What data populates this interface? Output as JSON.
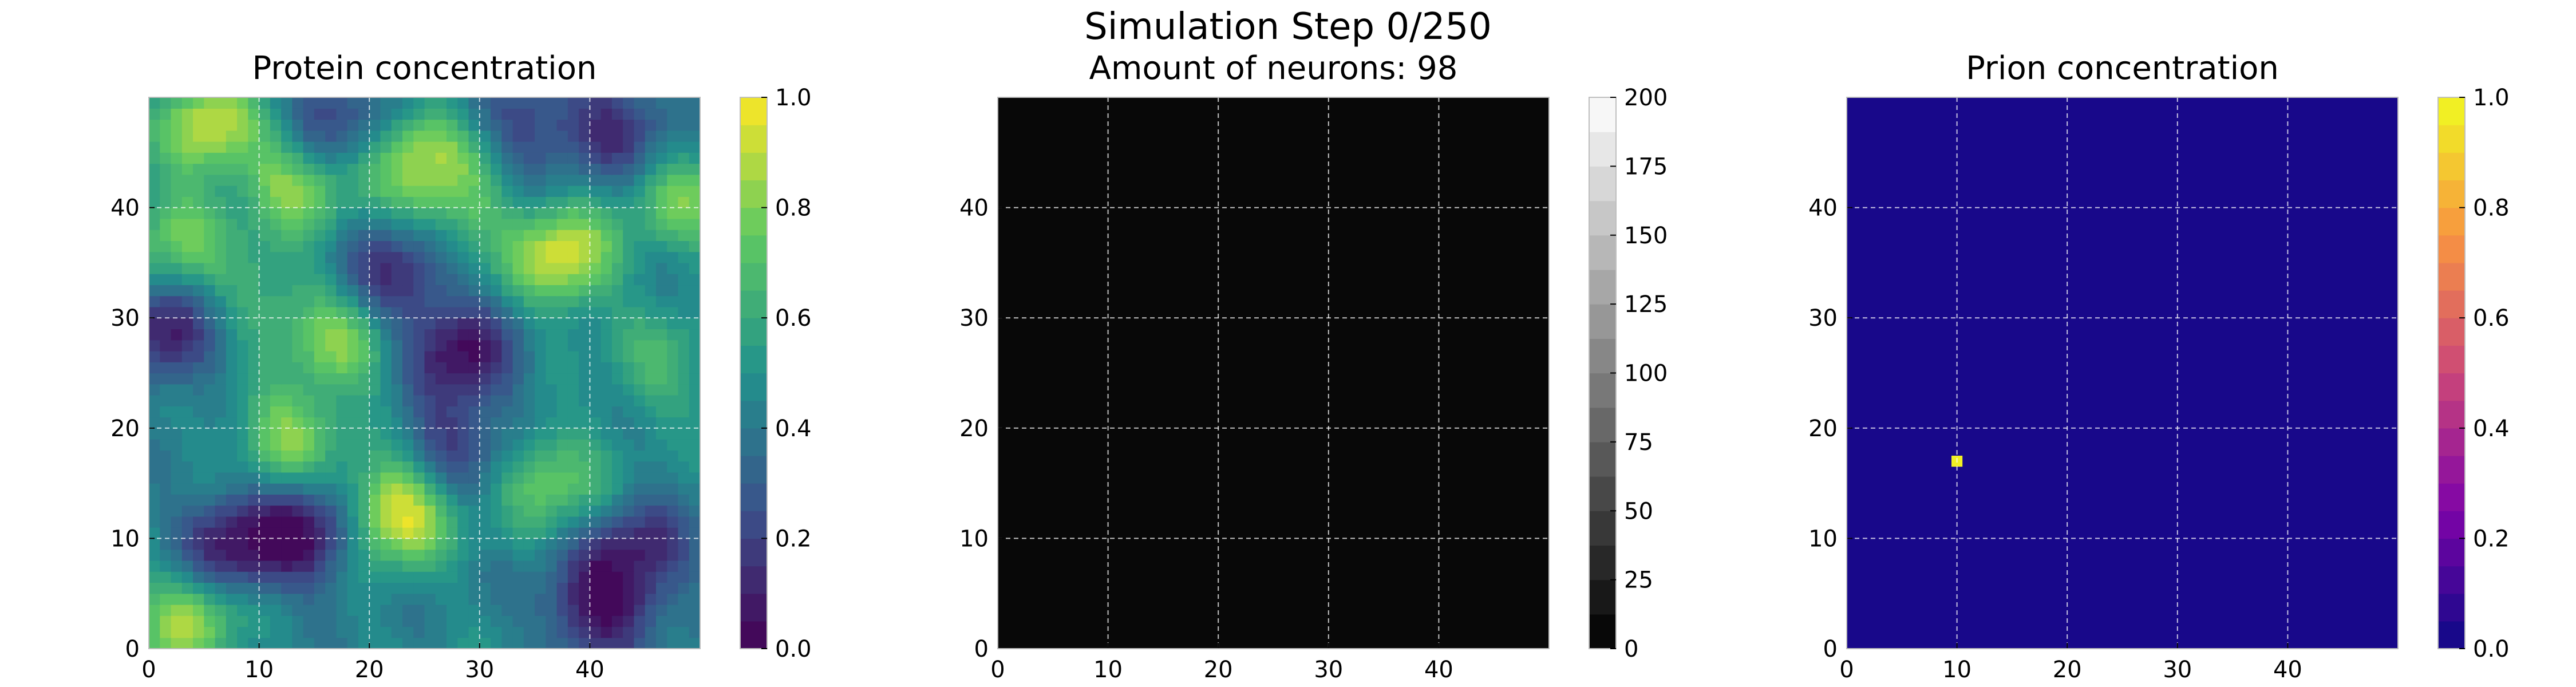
{
  "figure": {
    "suptitle": "Simulation Step 0/250"
  },
  "colors": {
    "background": "#ffffff",
    "grid": "#ffffff",
    "axes_edge": "#bfbfbf",
    "text": "#000000",
    "viridis_stops": [
      "#440154",
      "#3b528b",
      "#21918c",
      "#5ec962",
      "#fde725"
    ],
    "gray_stops": [
      "#000000",
      "#ffffff"
    ],
    "plasma_stops": [
      "#0d0887",
      "#7e03a8",
      "#cc4778",
      "#f89540",
      "#f0f921"
    ]
  },
  "chart_data": [
    {
      "type": "heatmap",
      "title": "Protein concentration",
      "colormap": "viridis",
      "grid_size": [
        50,
        50
      ],
      "xlim": [
        0,
        50
      ],
      "ylim": [
        0,
        50
      ],
      "xticks": [
        0,
        10,
        20,
        30,
        40
      ],
      "yticks": [
        0,
        10,
        20,
        30,
        40
      ],
      "grid": true,
      "colorbar": {
        "range": [
          0,
          1
        ],
        "levels": 20,
        "ticks": [
          0.0,
          0.2,
          0.4,
          0.6,
          0.8,
          1.0
        ],
        "tick_labels": [
          "0.0",
          "0.2",
          "0.4",
          "0.6",
          "0.8",
          "1.0"
        ]
      },
      "background_value": 0.45,
      "hotspots": [
        {
          "x": 22,
          "y": 12,
          "value": 1.0
        },
        {
          "x": 37,
          "y": 35,
          "value": 0.95
        },
        {
          "x": 24,
          "y": 44,
          "value": 0.85
        },
        {
          "x": 5,
          "y": 47,
          "value": 0.9
        },
        {
          "x": 13,
          "y": 42,
          "value": 0.85
        },
        {
          "x": 17,
          "y": 27,
          "value": 0.8
        },
        {
          "x": 48,
          "y": 40,
          "value": 0.75
        },
        {
          "x": 36,
          "y": 15,
          "value": 0.75
        },
        {
          "x": 3,
          "y": 2,
          "value": 0.85
        },
        {
          "x": 12,
          "y": 19,
          "value": 0.8
        },
        {
          "x": 28,
          "y": 40,
          "value": 0.7
        },
        {
          "x": 2,
          "y": 37,
          "value": 0.75
        },
        {
          "x": 46,
          "y": 25,
          "value": 0.65
        },
        {
          "x": 10,
          "y": 32,
          "value": 0.65
        }
      ],
      "lowspots": [
        {
          "x": 7,
          "y": 9,
          "value": 0.05
        },
        {
          "x": 14,
          "y": 10,
          "value": 0.05
        },
        {
          "x": 40,
          "y": 3,
          "value": 0.05
        },
        {
          "x": 44,
          "y": 8,
          "value": 0.1
        },
        {
          "x": 28,
          "y": 26,
          "value": 0.05
        },
        {
          "x": 1,
          "y": 28,
          "value": 0.1
        },
        {
          "x": 27,
          "y": 18,
          "value": 0.2
        },
        {
          "x": 22,
          "y": 33,
          "value": 0.1
        },
        {
          "x": 16,
          "y": 47,
          "value": 0.15
        },
        {
          "x": 42,
          "y": 47,
          "value": 0.15
        },
        {
          "x": 34,
          "y": 47,
          "value": 0.2
        }
      ]
    },
    {
      "type": "heatmap",
      "title": "Amount of neurons: 98",
      "colormap": "gray",
      "grid_size": [
        50,
        50
      ],
      "xlim": [
        0,
        50
      ],
      "ylim": [
        0,
        50
      ],
      "xticks": [
        0,
        10,
        20,
        30,
        40
      ],
      "yticks": [
        0,
        10,
        20,
        30,
        40
      ],
      "grid": true,
      "fill_value": 0,
      "colorbar": {
        "range": [
          0,
          200
        ],
        "levels": 16,
        "ticks": [
          0,
          25,
          50,
          75,
          100,
          125,
          150,
          175,
          200
        ],
        "tick_labels": [
          "0",
          "25",
          "50",
          "75",
          "100",
          "125",
          "150",
          "175",
          "200"
        ]
      }
    },
    {
      "type": "heatmap",
      "title": "Prion concentration",
      "colormap": "plasma",
      "grid_size": [
        50,
        50
      ],
      "xlim": [
        0,
        50
      ],
      "ylim": [
        0,
        50
      ],
      "xticks": [
        0,
        10,
        20,
        30,
        40
      ],
      "yticks": [
        0,
        10,
        20,
        30,
        40
      ],
      "grid": true,
      "fill_value": 0.0,
      "cells": [
        {
          "x": 10,
          "y": 17,
          "value": 1.0
        }
      ],
      "colorbar": {
        "range": [
          0,
          1
        ],
        "levels": 20,
        "ticks": [
          0.0,
          0.2,
          0.4,
          0.6,
          0.8,
          1.0
        ],
        "tick_labels": [
          "0.0",
          "0.2",
          "0.4",
          "0.6",
          "0.8",
          "1.0"
        ]
      }
    }
  ]
}
